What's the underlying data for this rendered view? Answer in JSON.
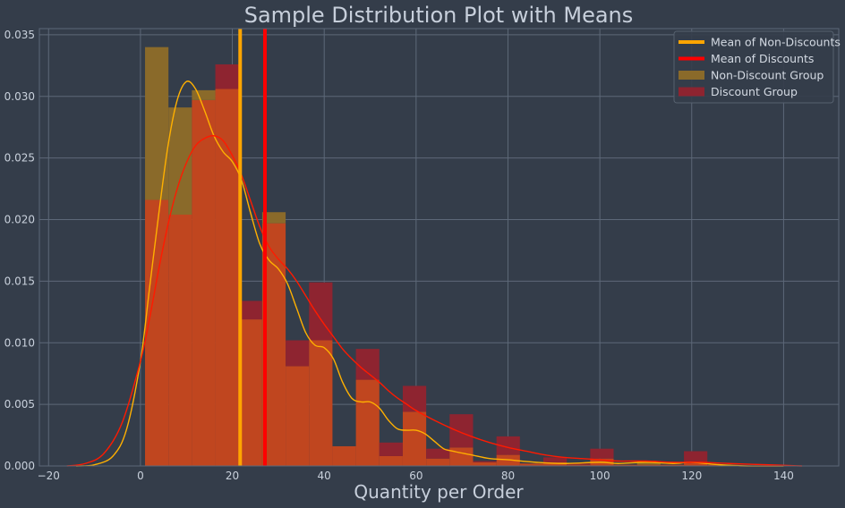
{
  "chart_data": {
    "type": "bar",
    "title": "Sample Distribution Plot with Means",
    "xlabel": "Quantity per Order",
    "ylabel": "",
    "xlim": [
      -22,
      152
    ],
    "ylim": [
      0,
      0.0355
    ],
    "x_ticks": [
      -20,
      0,
      20,
      40,
      60,
      80,
      100,
      120,
      140
    ],
    "y_ticks": [
      0.0,
      0.005,
      0.01,
      0.015,
      0.02,
      0.025,
      0.03,
      0.035
    ],
    "grid": true,
    "legend_position": "top-right",
    "colors": {
      "background": "#343d4a",
      "non_discount": "#ffa500",
      "discount": "#ff0000",
      "non_discount_hist": "#8a6a2a",
      "discount_hist": "#8e2430",
      "overlap_hist": "#c0461f",
      "grid": "#5d6878"
    },
    "histogram_bins": [
      {
        "x0": 1,
        "x1": 6.1,
        "non_discount": 0.034,
        "discount": 0.0216
      },
      {
        "x0": 6.1,
        "x1": 11.2,
        "non_discount": 0.0291,
        "discount": 0.0204
      },
      {
        "x0": 11.2,
        "x1": 16.3,
        "non_discount": 0.0305,
        "discount": 0.0297
      },
      {
        "x0": 16.3,
        "x1": 21.4,
        "non_discount": 0.0306,
        "discount": 0.0326
      },
      {
        "x0": 21.4,
        "x1": 26.5,
        "non_discount": 0.0119,
        "discount": 0.0134
      },
      {
        "x0": 26.5,
        "x1": 31.6,
        "non_discount": 0.0206,
        "discount": 0.0197
      },
      {
        "x0": 31.6,
        "x1": 36.7,
        "non_discount": 0.0081,
        "discount": 0.0102
      },
      {
        "x0": 36.7,
        "x1": 41.8,
        "non_discount": 0.0102,
        "discount": 0.0149
      },
      {
        "x0": 41.8,
        "x1": 46.9,
        "non_discount": 0.0016,
        "discount": 0.0016
      },
      {
        "x0": 46.9,
        "x1": 52.0,
        "non_discount": 0.007,
        "discount": 0.0095
      },
      {
        "x0": 52.0,
        "x1": 57.1,
        "non_discount": 0.0008,
        "discount": 0.0019
      },
      {
        "x0": 57.1,
        "x1": 62.2,
        "non_discount": 0.0044,
        "discount": 0.0065
      },
      {
        "x0": 62.2,
        "x1": 67.3,
        "non_discount": 0.0006,
        "discount": 0.0014
      },
      {
        "x0": 67.3,
        "x1": 72.4,
        "non_discount": 0.0015,
        "discount": 0.0042
      },
      {
        "x0": 72.4,
        "x1": 77.5,
        "non_discount": 0.0003,
        "discount": 0.0004
      },
      {
        "x0": 77.5,
        "x1": 82.6,
        "non_discount": 0.0009,
        "discount": 0.0024
      },
      {
        "x0": 82.6,
        "x1": 87.7,
        "non_discount": 0.0002,
        "discount": 0.0002
      },
      {
        "x0": 87.7,
        "x1": 92.8,
        "non_discount": 0.0003,
        "discount": 0.0007
      },
      {
        "x0": 92.8,
        "x1": 97.9,
        "non_discount": 0.0001,
        "discount": 0.0002
      },
      {
        "x0": 97.9,
        "x1": 103.0,
        "non_discount": 0.0006,
        "discount": 0.0014
      },
      {
        "x0": 103.0,
        "x1": 108.1,
        "non_discount": 0.0001,
        "discount": 0.0001
      },
      {
        "x0": 108.1,
        "x1": 113.2,
        "non_discount": 0.0004,
        "discount": 0.0001
      },
      {
        "x0": 113.2,
        "x1": 118.3,
        "non_discount": 0.0001,
        "discount": 0.0001
      },
      {
        "x0": 118.3,
        "x1": 123.4,
        "non_discount": 0.0003,
        "discount": 0.0012
      },
      {
        "x0": 123.4,
        "x1": 128.5,
        "non_discount": 0.0001,
        "discount": 0.0001
      }
    ],
    "means": [
      {
        "name": "Mean of Non-Discounts",
        "x": 21.7,
        "color": "#ffa500"
      },
      {
        "name": "Mean of Discounts",
        "x": 27.1,
        "color": "#ff0000"
      }
    ],
    "kde_curves": [
      {
        "name": "Non-Discount Group",
        "color": "#ffb000",
        "points": [
          [
            -14,
            0
          ],
          [
            -10,
            0.0001
          ],
          [
            -6,
            0.0008
          ],
          [
            -3,
            0.003
          ],
          [
            0,
            0.0085
          ],
          [
            2,
            0.0145
          ],
          [
            4,
            0.0205
          ],
          [
            6,
            0.026
          ],
          [
            8,
            0.0297
          ],
          [
            10,
            0.0312
          ],
          [
            12,
            0.0306
          ],
          [
            14,
            0.0288
          ],
          [
            16,
            0.0268
          ],
          [
            18,
            0.0255
          ],
          [
            20,
            0.0247
          ],
          [
            22,
            0.0232
          ],
          [
            24,
            0.0205
          ],
          [
            26,
            0.018
          ],
          [
            28,
            0.0167
          ],
          [
            30,
            0.016
          ],
          [
            32,
            0.0148
          ],
          [
            34,
            0.0128
          ],
          [
            36,
            0.0108
          ],
          [
            38,
            0.0098
          ],
          [
            40,
            0.0096
          ],
          [
            42,
            0.0087
          ],
          [
            44,
            0.0068
          ],
          [
            46,
            0.0055
          ],
          [
            48,
            0.0052
          ],
          [
            50,
            0.0052
          ],
          [
            52,
            0.0047
          ],
          [
            54,
            0.0037
          ],
          [
            56,
            0.003
          ],
          [
            58,
            0.0029
          ],
          [
            60,
            0.0029
          ],
          [
            62,
            0.0026
          ],
          [
            64,
            0.002
          ],
          [
            66,
            0.0014
          ],
          [
            68,
            0.0012
          ],
          [
            72,
            0.0009
          ],
          [
            76,
            0.0006
          ],
          [
            80,
            0.0005
          ],
          [
            86,
            0.0003
          ],
          [
            92,
            0.0002
          ],
          [
            100,
            0.0003
          ],
          [
            104,
            0.0002
          ],
          [
            110,
            0.0003
          ],
          [
            116,
            0.0002
          ],
          [
            120,
            0.0003
          ],
          [
            126,
            0.0001
          ],
          [
            132,
            0
          ],
          [
            140,
            0
          ]
        ]
      },
      {
        "name": "Discount Group",
        "color": "#ff1a00",
        "points": [
          [
            -16,
            0
          ],
          [
            -12,
            0.0002
          ],
          [
            -8,
            0.001
          ],
          [
            -4,
            0.0035
          ],
          [
            0,
            0.0085
          ],
          [
            2,
            0.012
          ],
          [
            4,
            0.016
          ],
          [
            6,
            0.0196
          ],
          [
            8,
            0.0225
          ],
          [
            10,
            0.0246
          ],
          [
            12,
            0.026
          ],
          [
            14,
            0.0266
          ],
          [
            16,
            0.0268
          ],
          [
            18,
            0.0264
          ],
          [
            20,
            0.0252
          ],
          [
            22,
            0.0236
          ],
          [
            24,
            0.0215
          ],
          [
            26,
            0.0194
          ],
          [
            28,
            0.0178
          ],
          [
            30,
            0.0168
          ],
          [
            32,
            0.016
          ],
          [
            34,
            0.015
          ],
          [
            36,
            0.0138
          ],
          [
            38,
            0.0126
          ],
          [
            40,
            0.0115
          ],
          [
            42,
            0.0105
          ],
          [
            44,
            0.0095
          ],
          [
            46,
            0.0087
          ],
          [
            48,
            0.008
          ],
          [
            50,
            0.0074
          ],
          [
            52,
            0.0068
          ],
          [
            54,
            0.0061
          ],
          [
            56,
            0.0055
          ],
          [
            58,
            0.005
          ],
          [
            60,
            0.0045
          ],
          [
            64,
            0.0037
          ],
          [
            68,
            0.003
          ],
          [
            72,
            0.0024
          ],
          [
            76,
            0.0019
          ],
          [
            80,
            0.0015
          ],
          [
            84,
            0.0012
          ],
          [
            88,
            0.0009
          ],
          [
            92,
            0.0007
          ],
          [
            96,
            0.0006
          ],
          [
            100,
            0.0005
          ],
          [
            104,
            0.0004
          ],
          [
            110,
            0.0004
          ],
          [
            116,
            0.0003
          ],
          [
            122,
            0.0003
          ],
          [
            128,
            0.0002
          ],
          [
            136,
            0.0001
          ],
          [
            144,
            0
          ]
        ]
      }
    ],
    "legend": [
      {
        "label": "Mean of Non-Discounts",
        "kind": "line",
        "color": "#ffa500"
      },
      {
        "label": "Mean of Discounts",
        "kind": "line",
        "color": "#ff0000"
      },
      {
        "label": "Non-Discount Group",
        "kind": "patch",
        "color": "#8a6a2a"
      },
      {
        "label": "Discount Group",
        "kind": "patch",
        "color": "#8e2430"
      }
    ]
  }
}
